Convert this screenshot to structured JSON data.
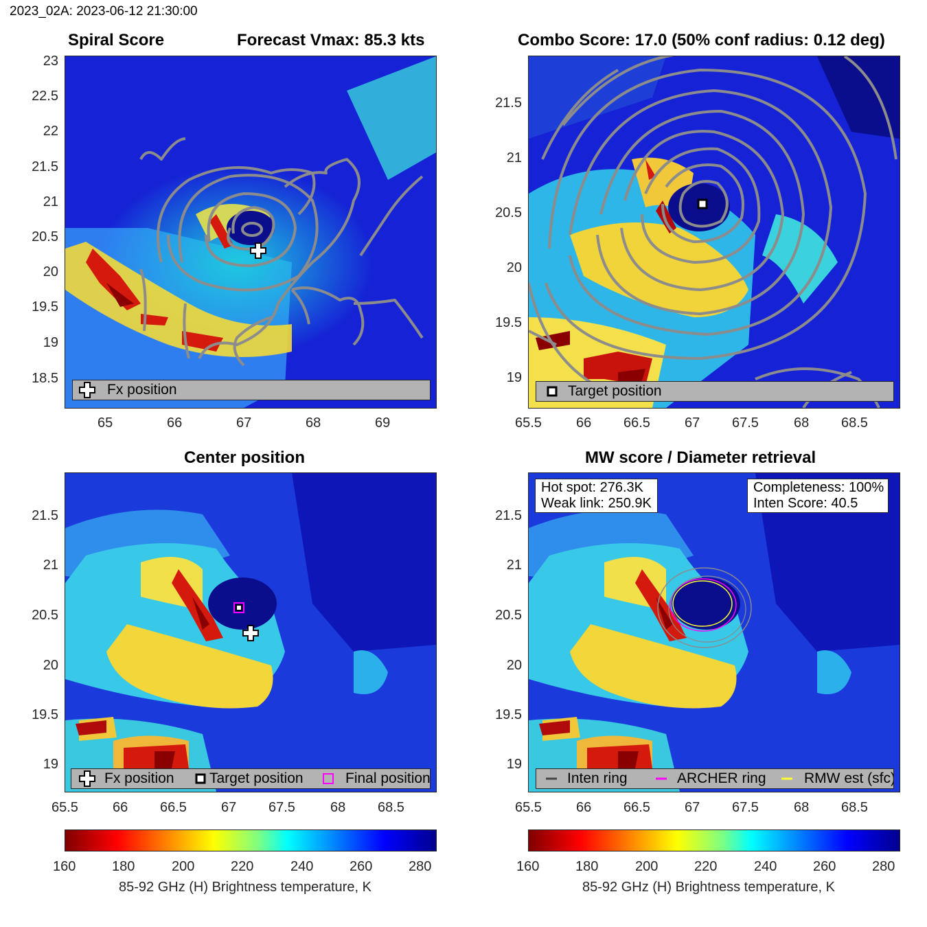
{
  "header": "2023_02A: 2023-06-12 21:30:00",
  "panels": {
    "spiral": {
      "title_left": "Spiral Score",
      "title_right": "Forecast Vmax: 85.3 kts",
      "xticks": [
        "65",
        "66",
        "67",
        "68",
        "69"
      ],
      "yticks": [
        "23",
        "22.5",
        "22",
        "21.5",
        "21",
        "20.5",
        "20",
        "19.5",
        "19",
        "18.5"
      ],
      "legend": [
        "Fx position"
      ]
    },
    "combo": {
      "title": "Combo Score: 17.0  (50% conf radius: 0.12 deg)",
      "xticks": [
        "65.5",
        "66",
        "66.5",
        "67",
        "67.5",
        "68",
        "68.5"
      ],
      "yticks": [
        "21.5",
        "21",
        "20.5",
        "20",
        "19.5",
        "19"
      ],
      "legend": [
        "Target position"
      ]
    },
    "center": {
      "title": "Center position",
      "xticks": [
        "65.5",
        "66",
        "66.5",
        "67",
        "67.5",
        "68",
        "68.5"
      ],
      "yticks": [
        "21.5",
        "21",
        "20.5",
        "20",
        "19.5",
        "19"
      ],
      "legend": [
        "Fx position",
        "Target position",
        "Final position"
      ]
    },
    "mw": {
      "title": "MW score / Diameter retrieval",
      "xticks": [
        "65.5",
        "66",
        "66.5",
        "67",
        "67.5",
        "68",
        "68.5"
      ],
      "yticks": [
        "21.5",
        "21",
        "20.5",
        "20",
        "19.5",
        "19"
      ],
      "hot_spot": "Hot spot: 276.3K",
      "weak_link": "Weak link: 250.9K",
      "completeness": "Completeness: 100%",
      "inten_score": "Inten Score: 40.5",
      "legend": [
        "Inten ring",
        "ARCHER ring",
        "RMW est (sfc)"
      ]
    }
  },
  "colorbar": {
    "ticks": [
      "160",
      "180",
      "200",
      "220",
      "240",
      "260",
      "280"
    ],
    "label": "85-92 GHz (H) Brightness temperature, K"
  },
  "colors": {
    "inten_ring": "#444444",
    "archer_ring": "#ff00ff",
    "rmw_ring": "#ffff33",
    "contour": "#8c8c8c"
  },
  "chart_data": [
    {
      "type": "heatmap",
      "title": "Spiral Score",
      "annotation": "Forecast Vmax: 85.3 kts",
      "xlim": [
        64.4,
        69.75
      ],
      "ylim": [
        18.05,
        23.1
      ],
      "fx_position": [
        67.2,
        20.33
      ],
      "colorbar_range": [
        160,
        285
      ],
      "legend": [
        "Fx position"
      ]
    },
    {
      "type": "heatmap",
      "title": "Combo Score: 17.0  (50% conf radius: 0.12 deg)",
      "xlim": [
        65.4,
        68.9
      ],
      "ylim": [
        18.72,
        21.92
      ],
      "target_position": [
        67.08,
        20.58
      ],
      "legend": [
        "Target position"
      ]
    },
    {
      "type": "heatmap",
      "title": "Center position",
      "xlim": [
        65.4,
        68.9
      ],
      "ylim": [
        18.72,
        21.92
      ],
      "fx_position": [
        67.2,
        20.33
      ],
      "target_position": [
        67.08,
        20.58
      ],
      "final_position": [
        67.08,
        20.58
      ],
      "legend": [
        "Fx position",
        "Target position",
        "Final position"
      ]
    },
    {
      "type": "heatmap",
      "title": "MW score / Diameter retrieval",
      "xlim": [
        65.4,
        68.9
      ],
      "ylim": [
        18.72,
        21.92
      ],
      "hot_spot_K": 276.3,
      "weak_link_K": 250.9,
      "completeness_pct": 100,
      "inten_score": 40.5,
      "legend": [
        "Inten ring",
        "ARCHER ring",
        "RMW est (sfc)"
      ]
    }
  ]
}
